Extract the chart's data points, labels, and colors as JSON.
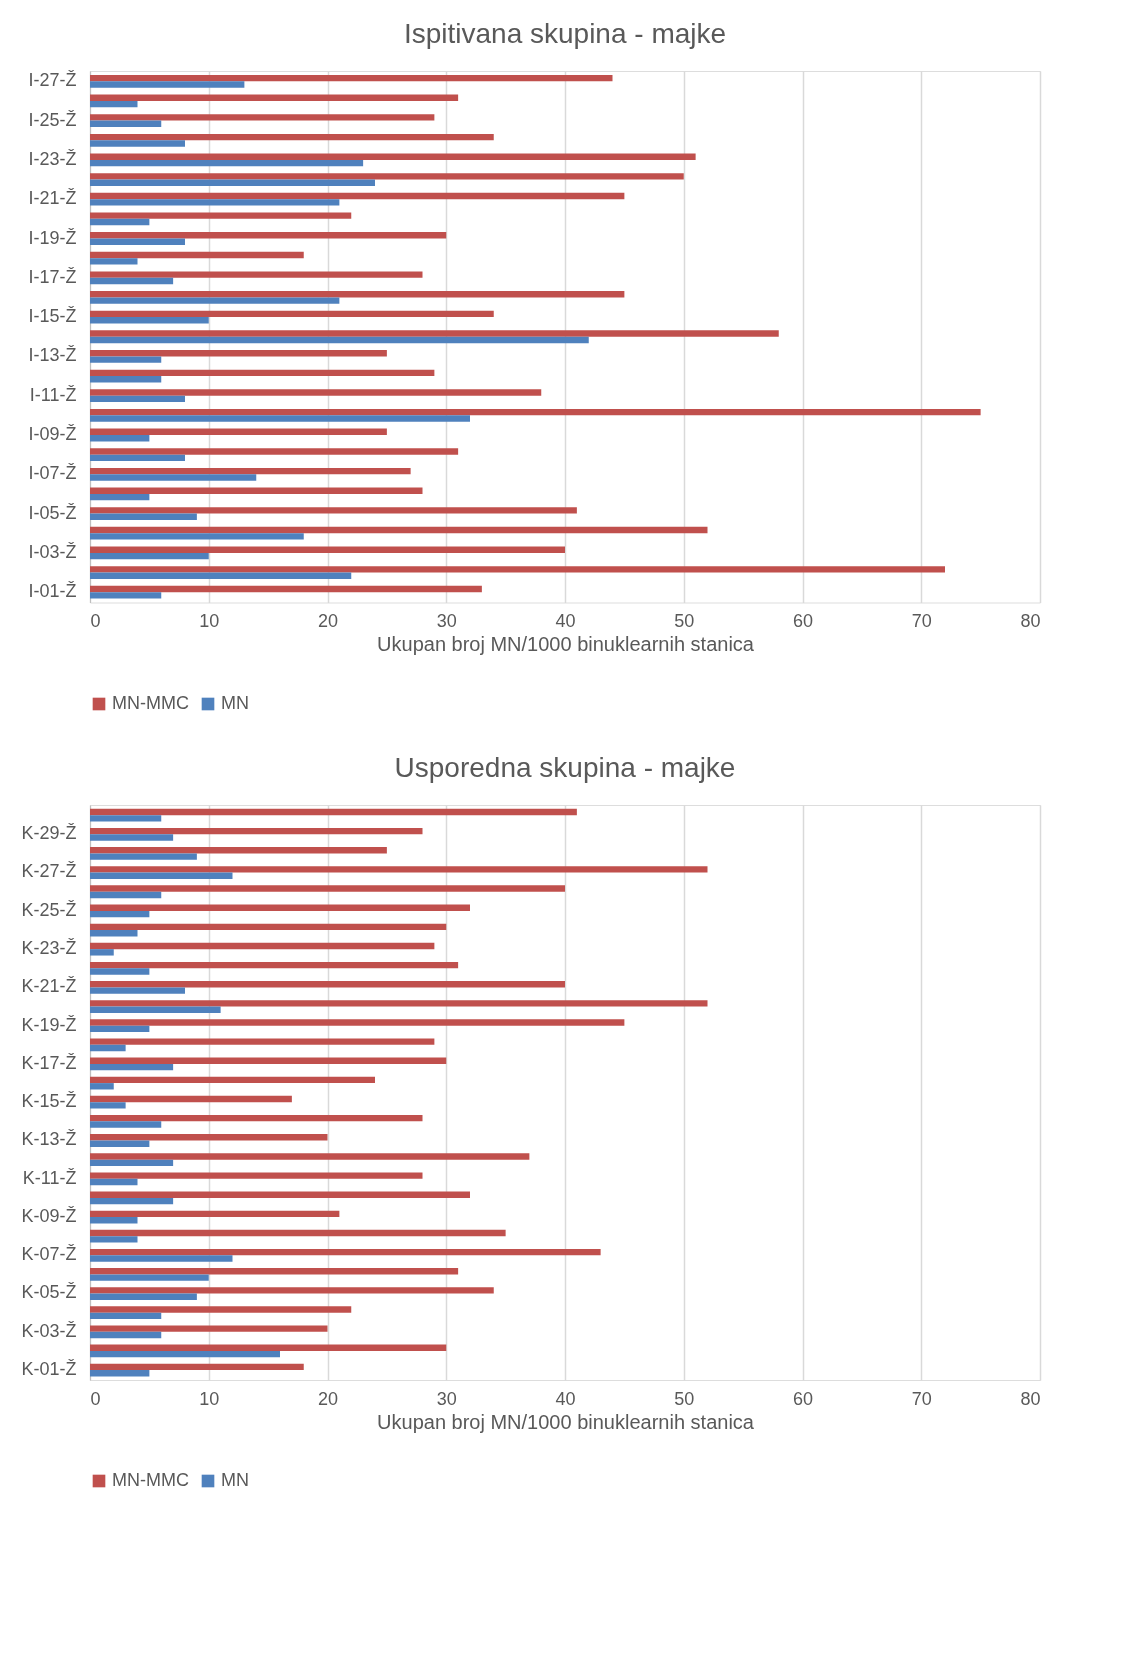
{
  "chart_data": [
    {
      "type": "bar",
      "orientation": "horizontal",
      "title": "Ispitivana skupina - majke",
      "xlabel": "Ukupan broj MN/1000 binuklearnih stanica",
      "categories": [
        "I-27-Ž",
        null,
        "I-25-Ž",
        null,
        "I-23-Ž",
        null,
        "I-21-Ž",
        null,
        "I-19-Ž",
        null,
        "I-17-Ž",
        null,
        "I-15-Ž",
        null,
        "I-13-Ž",
        null,
        "I-11-Ž",
        null,
        "I-09-Ž",
        null,
        "I-07-Ž",
        null,
        "I-05-Ž",
        null,
        "I-03-Ž",
        null,
        "I-01-Ž"
      ],
      "series": [
        {
          "name": "MN-MMC",
          "color": "#c0504d",
          "values": [
            44,
            31,
            29,
            34,
            51,
            50,
            45,
            22,
            30,
            18,
            28,
            45,
            34,
            58,
            25,
            29,
            38,
            75,
            25,
            31,
            27,
            28,
            41,
            52,
            40,
            72,
            33
          ]
        },
        {
          "name": "MN",
          "color": "#4f81bd",
          "values": [
            13,
            4,
            6,
            8,
            23,
            24,
            21,
            5,
            8,
            4,
            7,
            21,
            10,
            42,
            6,
            6,
            8,
            32,
            5,
            8,
            14,
            5,
            9,
            18,
            10,
            22,
            6
          ]
        }
      ],
      "xlim": [
        0,
        80
      ],
      "xticks": [
        0,
        10,
        20,
        30,
        40,
        50,
        60,
        70,
        80
      ],
      "grid": "x",
      "legend": "bottom"
    },
    {
      "type": "bar",
      "orientation": "horizontal",
      "title": "Usporedna skupina - majke",
      "xlabel": "Ukupan broj MN/1000 binuklearnih stanica",
      "categories": [
        null,
        "K-29-Ž",
        null,
        "K-27-Ž",
        null,
        "K-25-Ž",
        null,
        "K-23-Ž",
        null,
        "K-21-Ž",
        null,
        "K-19-Ž",
        null,
        "K-17-Ž",
        null,
        "K-15-Ž",
        null,
        "K-13-Ž",
        null,
        "K-11-Ž",
        null,
        "K-09-Ž",
        null,
        "K-07-Ž",
        null,
        "K-05-Ž",
        null,
        "K-03-Ž",
        null,
        "K-01-Ž"
      ],
      "series": [
        {
          "name": "MN-MMC",
          "color": "#c0504d",
          "values": [
            41,
            28,
            25,
            52,
            40,
            32,
            30,
            29,
            31,
            40,
            52,
            45,
            29,
            30,
            24,
            17,
            28,
            20,
            37,
            28,
            32,
            21,
            35,
            43,
            31,
            34,
            22,
            20,
            30,
            18
          ]
        },
        {
          "name": "MN",
          "color": "#4f81bd",
          "values": [
            6,
            7,
            9,
            12,
            6,
            5,
            4,
            2,
            5,
            8,
            11,
            5,
            3,
            7,
            2,
            3,
            6,
            5,
            7,
            4,
            7,
            4,
            4,
            12,
            10,
            9,
            6,
            6,
            16,
            5
          ]
        }
      ],
      "xlim": [
        0,
        80
      ],
      "xticks": [
        0,
        10,
        20,
        30,
        40,
        50,
        60,
        70,
        80
      ],
      "grid": "x",
      "legend": "bottom"
    }
  ]
}
